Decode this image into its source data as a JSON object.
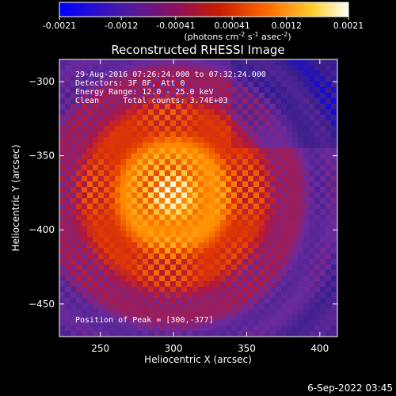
{
  "colorbar": {
    "tick_labels": [
      "-0.0021",
      "-0.0012",
      "-0.00041",
      "0.00041",
      "0.0012",
      "0.0021"
    ],
    "tick_values": [
      -0.0021,
      -0.0012,
      -0.00041,
      0.00041,
      0.0012,
      0.0021
    ],
    "range": [
      -0.0021,
      0.0021
    ],
    "units_prefix": "(photons cm",
    "units_sup1": "-2",
    "units_mid": " s",
    "units_sup2": "-1",
    "units_mid2": " asec",
    "units_sup3": "-2",
    "units_suffix": ")"
  },
  "chart_data": {
    "type": "heatmap",
    "title": "Reconstructed RHESSI Image",
    "xlabel": "Heliocentric X (arcsec)",
    "ylabel": "Heliocentric Y (arcsec)",
    "xlim": [
      222,
      412
    ],
    "ylim": [
      -472,
      -285
    ],
    "x_ticks": [
      250,
      300,
      350,
      400
    ],
    "y_ticks": [
      -300,
      -350,
      -400,
      -450
    ],
    "x_tick_labels": [
      "250",
      "300",
      "350",
      "400"
    ],
    "y_tick_labels": [
      "−300",
      "−350",
      "−400",
      "−450"
    ],
    "peak": [
      300,
      -377
    ],
    "colormap": [
      "#0000ff",
      "#3a1f8a",
      "#6a2a9e",
      "#b0173d",
      "#e23a00",
      "#ff8a00",
      "#ffd040",
      "#ffffff"
    ],
    "annotations": [
      "29-Aug-2016 07:26:24.000 to 07:32:24.000",
      "Detectors: 3F 8F, Att 0",
      "Energy Range: 12.0 - 25.0 keV",
      "Clean     Total counts: 3.74E+03",
      "Position of Peak = [300,-377]"
    ]
  },
  "footer_date": "6-Sep-2022 03:45"
}
